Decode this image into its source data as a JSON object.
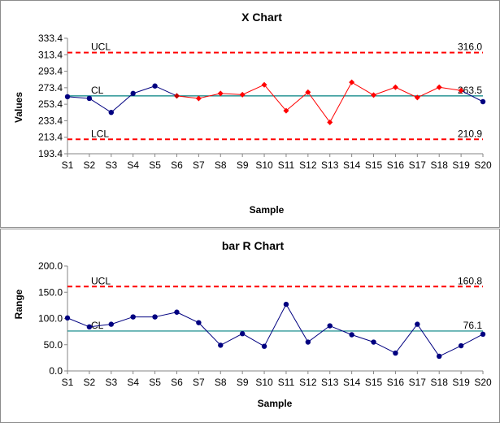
{
  "chart_data": [
    {
      "type": "line",
      "title": "X Chart",
      "xlabel": "Sample",
      "ylabel": "Values",
      "categories": [
        "S1",
        "S2",
        "S3",
        "S4",
        "S5",
        "S6",
        "S7",
        "S8",
        "S9",
        "S10",
        "S11",
        "S12",
        "S13",
        "S14",
        "S15",
        "S16",
        "S17",
        "S18",
        "S19",
        "S20"
      ],
      "yticks": [
        "193.4",
        "213.4",
        "233.4",
        "253.4",
        "273.4",
        "293.4",
        "313.4",
        "333.4"
      ],
      "ylim": [
        193.4,
        333.4
      ],
      "series": [
        {
          "values": [
            262.5,
            260.5,
            243.5,
            266.5,
            275.5,
            263.5,
            260.5,
            266.5,
            265.0,
            277.0,
            245.5,
            268.0,
            231.5,
            280.0,
            264.5,
            274.0,
            261.5,
            274.0,
            270.0,
            256.5
          ]
        }
      ],
      "marker_colors": [
        "#000080",
        "#000080",
        "#000080",
        "#000080",
        "#000080",
        "#c00000",
        "#ff0000",
        "#ff0000",
        "#ff0000",
        "#ff0000",
        "#ff0000",
        "#ff0000",
        "#ff0000",
        "#ff0000",
        "#ff0000",
        "#ff0000",
        "#ff0000",
        "#ff0000",
        "#ff0000",
        "#000080"
      ],
      "line_colors": [
        "#000080",
        "#000080",
        "#000080",
        "#000080",
        "#000080",
        "#ff0000",
        "#ff0000",
        "#ff0000",
        "#ff0000",
        "#ff0000",
        "#ff0000",
        "#ff0000",
        "#ff0000",
        "#ff0000",
        "#ff0000",
        "#ff0000",
        "#ff0000",
        "#ff0000",
        "#000080"
      ],
      "marker_shapes": [
        "circle",
        "circle",
        "circle",
        "circle",
        "circle",
        "diamond",
        "diamond",
        "diamond",
        "diamond",
        "diamond",
        "diamond",
        "diamond",
        "diamond",
        "diamond",
        "diamond",
        "diamond",
        "diamond",
        "diamond",
        "diamond",
        "circle"
      ],
      "ucl": {
        "label": "UCL",
        "value": 316.0,
        "value_text": "316.0",
        "color": "#ff0000"
      },
      "cl": {
        "label": "CL",
        "value": 263.5,
        "value_text": "263.5",
        "color": "#008080"
      },
      "lcl": {
        "label": "LCL",
        "value": 210.9,
        "value_text": "210.9",
        "color": "#ff0000"
      },
      "grid": false,
      "legend": "none"
    },
    {
      "type": "line",
      "title": "bar R Chart",
      "xlabel": "Sample",
      "ylabel": "Range",
      "categories": [
        "S1",
        "S2",
        "S3",
        "S4",
        "S5",
        "S6",
        "S7",
        "S8",
        "S9",
        "S10",
        "S11",
        "S12",
        "S13",
        "S14",
        "S15",
        "S16",
        "S17",
        "S18",
        "S19",
        "S20"
      ],
      "yticks": [
        "0.0",
        "50.0",
        "100.0",
        "150.0",
        "200.0"
      ],
      "ylim": [
        0,
        200
      ],
      "series": [
        {
          "values": [
            101,
            84,
            89,
            103,
            103,
            112,
            92,
            49,
            71,
            47,
            127,
            55,
            86,
            69,
            55,
            34,
            89,
            28,
            48,
            70
          ]
        }
      ],
      "marker_color": "#000080",
      "line_color": "#000080",
      "ucl": {
        "label": "UCL",
        "value": 160.8,
        "value_text": "160.8",
        "color": "#ff0000"
      },
      "cl": {
        "label": "CL",
        "value": 76.1,
        "value_text": "76.1",
        "color": "#008080"
      },
      "grid": false,
      "legend": "none"
    }
  ]
}
